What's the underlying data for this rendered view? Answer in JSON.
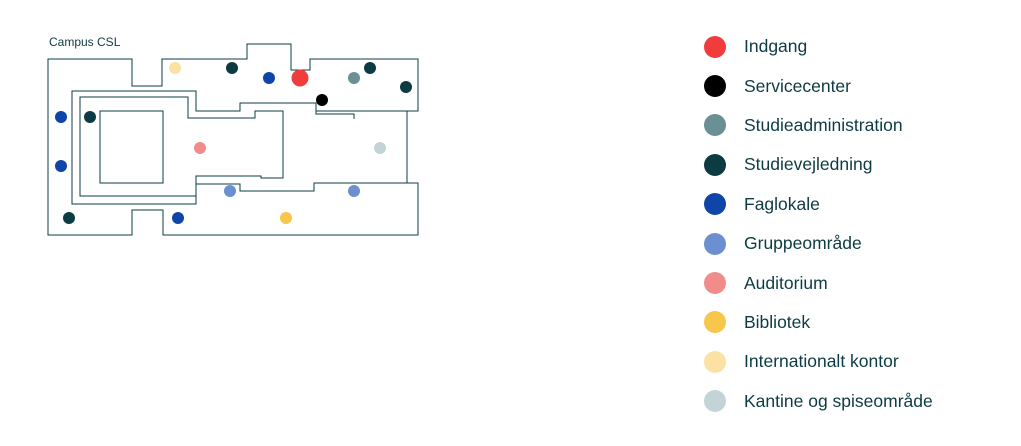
{
  "map": {
    "title": "Campus CSL"
  },
  "colors": {
    "outline": "#0d3b43",
    "text": "#0d3b43"
  },
  "legend": [
    {
      "key": "indgang",
      "label": "Indgang",
      "color": "#f03c3c"
    },
    {
      "key": "servicecenter",
      "label": "Servicecenter",
      "color": "#000000"
    },
    {
      "key": "studieadministration",
      "label": "Studieadministration",
      "color": "#6a8f94"
    },
    {
      "key": "studievejledning",
      "label": "Studievejledning",
      "color": "#0d3b43"
    },
    {
      "key": "faglokale",
      "label": "Faglokale",
      "color": "#0f45a8"
    },
    {
      "key": "gruppeomraade",
      "label": "Gruppeområde",
      "color": "#6b8fcf"
    },
    {
      "key": "auditorium",
      "label": "Auditorium",
      "color": "#f08d8a"
    },
    {
      "key": "bibliotek",
      "label": "Bibliotek",
      "color": "#f7c64a"
    },
    {
      "key": "internationalt",
      "label": "Internationalt kontor",
      "color": "#fbe2a4"
    },
    {
      "key": "kantine",
      "label": "Kantine og spiseområde",
      "color": "#c3d4d8"
    }
  ]
}
